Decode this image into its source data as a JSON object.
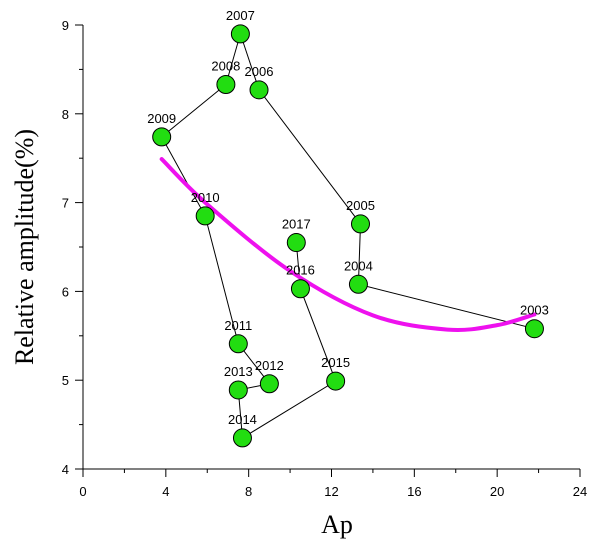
{
  "chart_data": {
    "type": "scatter",
    "xlabel": "Ap",
    "ylabel": "Relative amplitude(%)",
    "xlim": [
      0,
      24
    ],
    "ylim": [
      4,
      9
    ],
    "xticks": [
      0,
      4,
      8,
      12,
      16,
      20,
      24
    ],
    "yticks": [
      4,
      5,
      6,
      7,
      8,
      9
    ],
    "grid": false,
    "colors": {
      "marker_fill": "#22dd11",
      "marker_edge": "#000000",
      "path_line": "#000000",
      "fit_curve": "#ee11ee"
    },
    "points": [
      {
        "label": "2003",
        "x": 21.8,
        "y": 5.58
      },
      {
        "label": "2004",
        "x": 13.3,
        "y": 6.08
      },
      {
        "label": "2005",
        "x": 13.4,
        "y": 6.76
      },
      {
        "label": "2006",
        "x": 8.5,
        "y": 8.27
      },
      {
        "label": "2007",
        "x": 7.6,
        "y": 8.9
      },
      {
        "label": "2008",
        "x": 6.9,
        "y": 8.33
      },
      {
        "label": "2009",
        "x": 3.8,
        "y": 7.74
      },
      {
        "label": "2010",
        "x": 5.9,
        "y": 6.85
      },
      {
        "label": "2011",
        "x": 7.5,
        "y": 5.41
      },
      {
        "label": "2012",
        "x": 9.0,
        "y": 4.96
      },
      {
        "label": "2013",
        "x": 7.5,
        "y": 4.89
      },
      {
        "label": "2014",
        "x": 7.7,
        "y": 4.35
      },
      {
        "label": "2015",
        "x": 12.2,
        "y": 4.99
      },
      {
        "label": "2016",
        "x": 10.5,
        "y": 6.03
      },
      {
        "label": "2017",
        "x": 10.3,
        "y": 6.55
      }
    ],
    "fit_curve": {
      "type": "quadratic",
      "x_range": [
        3.8,
        21.8
      ],
      "points": [
        {
          "x": 3.8,
          "y": 7.49
        },
        {
          "x": 6.0,
          "y": 6.98
        },
        {
          "x": 10.0,
          "y": 6.23
        },
        {
          "x": 14.0,
          "y": 5.73
        },
        {
          "x": 17.6,
          "y": 5.57
        },
        {
          "x": 20.0,
          "y": 5.62
        },
        {
          "x": 21.8,
          "y": 5.74
        }
      ]
    }
  }
}
